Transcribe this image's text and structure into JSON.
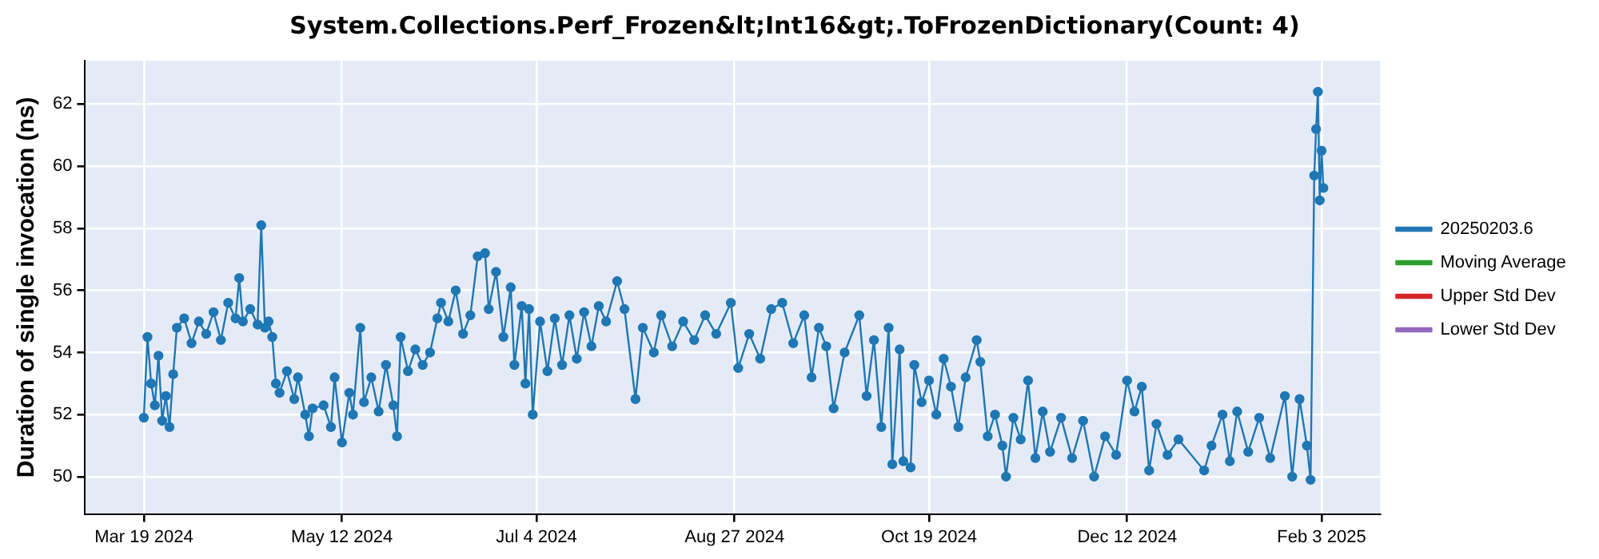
{
  "chart_data": {
    "type": "line",
    "title": "System.Collections.Perf_Frozen&lt;Int16&gt;.ToFrozenDictionary(Count: 4)",
    "ylabel": "Duration of single invocation (ns)",
    "xlim": [
      "2024-03-03",
      "2025-02-19"
    ],
    "xticks": [
      {
        "value": "2024-03-19",
        "label": "Mar 19 2024"
      },
      {
        "value": "2024-05-12",
        "label": "May 12 2024"
      },
      {
        "value": "2024-07-04",
        "label": "Jul 4 2024"
      },
      {
        "value": "2024-08-27",
        "label": "Aug 27 2024"
      },
      {
        "value": "2024-10-19",
        "label": "Oct 19 2024"
      },
      {
        "value": "2024-12-12",
        "label": "Dec 12 2024"
      },
      {
        "value": "2025-02-03",
        "label": "Feb 3 2025"
      }
    ],
    "ylim": [
      48.8,
      63.4
    ],
    "yticks": [
      50,
      52,
      54,
      56,
      58,
      60,
      62
    ],
    "grid": true,
    "legend": "right",
    "marker": "circle",
    "line_style": "solid",
    "series": [
      {
        "name": "20250203.6",
        "color": "#1f77b4",
        "x": [
          "2024-03-19",
          "2024-03-20",
          "2024-03-21",
          "2024-03-22",
          "2024-03-23",
          "2024-03-24",
          "2024-03-25",
          "2024-03-26",
          "2024-03-27",
          "2024-03-28",
          "2024-03-30",
          "2024-04-01",
          "2024-04-03",
          "2024-04-05",
          "2024-04-07",
          "2024-04-09",
          "2024-04-11",
          "2024-04-13",
          "2024-04-14",
          "2024-04-15",
          "2024-04-17",
          "2024-04-19",
          "2024-04-20",
          "2024-04-21",
          "2024-04-22",
          "2024-04-23",
          "2024-04-24",
          "2024-04-25",
          "2024-04-27",
          "2024-04-29",
          "2024-04-30",
          "2024-05-02",
          "2024-05-03",
          "2024-05-04",
          "2024-05-07",
          "2024-05-09",
          "2024-05-10",
          "2024-05-12",
          "2024-05-14",
          "2024-05-15",
          "2024-05-17",
          "2024-05-18",
          "2024-05-20",
          "2024-05-22",
          "2024-05-24",
          "2024-05-26",
          "2024-05-27",
          "2024-05-28",
          "2024-05-30",
          "2024-06-01",
          "2024-06-03",
          "2024-06-05",
          "2024-06-07",
          "2024-06-08",
          "2024-06-10",
          "2024-06-12",
          "2024-06-14",
          "2024-06-16",
          "2024-06-18",
          "2024-06-20",
          "2024-06-21",
          "2024-06-23",
          "2024-06-25",
          "2024-06-27",
          "2024-06-28",
          "2024-06-30",
          "2024-07-01",
          "2024-07-02",
          "2024-07-03",
          "2024-07-05",
          "2024-07-07",
          "2024-07-09",
          "2024-07-11",
          "2024-07-13",
          "2024-07-15",
          "2024-07-17",
          "2024-07-19",
          "2024-07-21",
          "2024-07-23",
          "2024-07-26",
          "2024-07-28",
          "2024-07-31",
          "2024-08-02",
          "2024-08-05",
          "2024-08-07",
          "2024-08-10",
          "2024-08-13",
          "2024-08-16",
          "2024-08-19",
          "2024-08-22",
          "2024-08-26",
          "2024-08-28",
          "2024-08-31",
          "2024-09-03",
          "2024-09-06",
          "2024-09-09",
          "2024-09-12",
          "2024-09-15",
          "2024-09-17",
          "2024-09-19",
          "2024-09-21",
          "2024-09-23",
          "2024-09-26",
          "2024-09-30",
          "2024-10-02",
          "2024-10-04",
          "2024-10-06",
          "2024-10-08",
          "2024-10-09",
          "2024-10-11",
          "2024-10-12",
          "2024-10-14",
          "2024-10-15",
          "2024-10-17",
          "2024-10-19",
          "2024-10-21",
          "2024-10-23",
          "2024-10-25",
          "2024-10-27",
          "2024-10-29",
          "2024-11-01",
          "2024-11-02",
          "2024-11-04",
          "2024-11-06",
          "2024-11-08",
          "2024-11-09",
          "2024-11-11",
          "2024-11-13",
          "2024-11-15",
          "2024-11-17",
          "2024-11-19",
          "2024-11-21",
          "2024-11-24",
          "2024-11-27",
          "2024-11-30",
          "2024-12-03",
          "2024-12-06",
          "2024-12-09",
          "2024-12-12",
          "2024-12-14",
          "2024-12-16",
          "2024-12-18",
          "2024-12-20",
          "2024-12-23",
          "2024-12-26",
          "2025-01-02",
          "2025-01-04",
          "2025-01-07",
          "2025-01-09",
          "2025-01-11",
          "2025-01-14",
          "2025-01-17",
          "2025-01-20",
          "2025-01-24",
          "2025-01-26",
          "2025-01-28",
          "2025-01-30",
          "2025-01-31",
          "2025-02-01",
          "2025-02-01T12:00",
          "2025-02-02",
          "2025-02-02T12:00",
          "2025-02-03",
          "2025-02-03T12:00"
        ],
        "values": [
          51.9,
          54.5,
          53.0,
          52.3,
          53.9,
          51.8,
          52.6,
          51.6,
          53.3,
          54.8,
          55.1,
          54.3,
          55.0,
          54.6,
          55.3,
          54.4,
          55.6,
          55.1,
          56.4,
          55.0,
          55.4,
          54.9,
          58.1,
          54.8,
          55.0,
          54.5,
          53.0,
          52.7,
          53.4,
          52.5,
          53.2,
          52.0,
          51.3,
          52.2,
          52.3,
          51.6,
          53.2,
          51.1,
          52.7,
          52.0,
          54.8,
          52.4,
          53.2,
          52.1,
          53.6,
          52.3,
          51.3,
          54.5,
          53.4,
          54.1,
          53.6,
          54.0,
          55.1,
          55.6,
          55.0,
          56.0,
          54.6,
          55.2,
          57.1,
          57.2,
          55.4,
          56.6,
          54.5,
          56.1,
          53.6,
          55.5,
          53.0,
          55.4,
          52.0,
          55.0,
          53.4,
          55.1,
          53.6,
          55.2,
          53.8,
          55.3,
          54.2,
          55.5,
          55.0,
          56.3,
          55.4,
          52.5,
          54.8,
          54.0,
          55.2,
          54.2,
          55.0,
          54.4,
          55.2,
          54.6,
          55.6,
          53.5,
          54.6,
          53.8,
          55.4,
          55.6,
          54.3,
          55.2,
          53.2,
          54.8,
          54.2,
          52.2,
          54.0,
          55.2,
          52.6,
          54.4,
          51.6,
          54.8,
          50.4,
          54.1,
          50.5,
          50.3,
          53.6,
          52.4,
          53.1,
          52.0,
          53.8,
          52.9,
          51.6,
          53.2,
          54.4,
          53.7,
          51.3,
          52.0,
          51.0,
          50.0,
          51.9,
          51.2,
          53.1,
          50.6,
          52.1,
          50.8,
          51.9,
          50.6,
          51.8,
          50.0,
          51.3,
          50.7,
          53.1,
          52.1,
          52.9,
          50.2,
          51.7,
          50.7,
          51.2,
          50.2,
          51.0,
          52.0,
          50.5,
          52.1,
          50.8,
          51.9,
          50.6,
          52.6,
          50.0,
          52.5,
          51.0,
          49.9,
          59.7,
          61.2,
          62.4,
          58.9,
          60.5,
          59.3
        ]
      },
      {
        "name": "Moving Average",
        "color": "#2ca02c"
      },
      {
        "name": "Upper Std Dev",
        "color": "#d62728"
      },
      {
        "name": "Lower Std Dev",
        "color": "#9467bd"
      }
    ]
  }
}
